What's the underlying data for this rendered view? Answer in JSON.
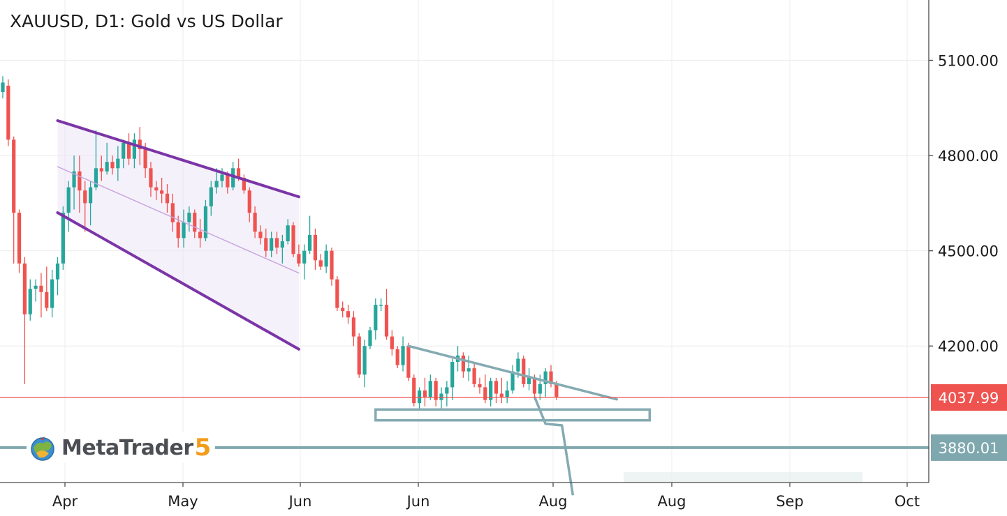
{
  "header": {
    "title": "XAUUSD, D1: Gold vs US Dollar"
  },
  "logo": {
    "text": "MetaTrader",
    "version": "5"
  },
  "colors": {
    "up": "#26a69a",
    "down": "#ef5350",
    "price_line": "#ef5350",
    "level_line": "#7fa7ae",
    "channel": "#7b35a6",
    "pattern": "#84aab2",
    "grid": "#ececec"
  },
  "chart_data": {
    "type": "candlestick",
    "symbol": "XAUUSD",
    "timeframe": "D1",
    "title": "XAUUSD, D1: Gold vs US Dollar",
    "ylim": [
      3770,
      5290
    ],
    "y_ticks": [
      5100,
      4800,
      4500,
      4200
    ],
    "y_tick_labels": [
      "5100.00",
      "4800.00",
      "4500.00",
      "4200.00"
    ],
    "x_tick_labels": [
      "Apr",
      "May",
      "Jun",
      "Jun",
      "Aug",
      "Aug",
      "Sep",
      "Oct"
    ],
    "current_price": {
      "value": 4037.99,
      "label": "4037.99"
    },
    "level": {
      "value": 3880.01,
      "label": "3880.01"
    },
    "grid": true,
    "candles": [
      [
        5000,
        5050,
        4980,
        5030
      ],
      [
        5020,
        5040,
        4830,
        4850
      ],
      [
        4850,
        4860,
        4460,
        4620
      ],
      [
        4620,
        4630,
        4430,
        4460
      ],
      [
        4460,
        4480,
        4080,
        4300
      ],
      [
        4300,
        4410,
        4280,
        4380
      ],
      [
        4380,
        4410,
        4340,
        4390
      ],
      [
        4390,
        4430,
        4290,
        4370
      ],
      [
        4370,
        4450,
        4310,
        4320
      ],
      [
        4320,
        4440,
        4290,
        4410
      ],
      [
        4410,
        4480,
        4360,
        4460
      ],
      [
        4460,
        4640,
        4440,
        4620
      ],
      [
        4620,
        4720,
        4560,
        4700
      ],
      [
        4700,
        4800,
        4630,
        4750
      ],
      [
        4750,
        4800,
        4620,
        4690
      ],
      [
        4690,
        4720,
        4560,
        4650
      ],
      [
        4650,
        4720,
        4580,
        4700
      ],
      [
        4700,
        4880,
        4690,
        4760
      ],
      [
        4760,
        4800,
        4720,
        4750
      ],
      [
        4750,
        4840,
        4740,
        4780
      ],
      [
        4780,
        4800,
        4740,
        4760
      ],
      [
        4760,
        4830,
        4720,
        4790
      ],
      [
        4790,
        4850,
        4760,
        4840
      ],
      [
        4840,
        4870,
        4770,
        4790
      ],
      [
        4790,
        4870,
        4760,
        4850
      ],
      [
        4850,
        4890,
        4770,
        4820
      ],
      [
        4820,
        4840,
        4730,
        4760
      ],
      [
        4760,
        4780,
        4670,
        4700
      ],
      [
        4700,
        4720,
        4660,
        4690
      ],
      [
        4690,
        4730,
        4650,
        4680
      ],
      [
        4680,
        4710,
        4620,
        4650
      ],
      [
        4650,
        4680,
        4560,
        4590
      ],
      [
        4590,
        4610,
        4510,
        4540
      ],
      [
        4540,
        4630,
        4510,
        4590
      ],
      [
        4590,
        4640,
        4560,
        4620
      ],
      [
        4620,
        4630,
        4540,
        4560
      ],
      [
        4560,
        4600,
        4510,
        4540
      ],
      [
        4540,
        4660,
        4530,
        4640
      ],
      [
        4640,
        4720,
        4610,
        4700
      ],
      [
        4700,
        4760,
        4680,
        4720
      ],
      [
        4720,
        4760,
        4700,
        4740
      ],
      [
        4740,
        4750,
        4680,
        4700
      ],
      [
        4700,
        4780,
        4690,
        4760
      ],
      [
        4760,
        4790,
        4720,
        4730
      ],
      [
        4730,
        4740,
        4680,
        4690
      ],
      [
        4690,
        4700,
        4590,
        4620
      ],
      [
        4620,
        4640,
        4540,
        4560
      ],
      [
        4560,
        4580,
        4520,
        4540
      ],
      [
        4540,
        4570,
        4480,
        4500
      ],
      [
        4500,
        4560,
        4480,
        4540
      ],
      [
        4540,
        4560,
        4490,
        4510
      ],
      [
        4510,
        4550,
        4460,
        4530
      ],
      [
        4530,
        4600,
        4520,
        4580
      ],
      [
        4580,
        4590,
        4480,
        4490
      ],
      [
        4490,
        4520,
        4450,
        4460
      ],
      [
        4460,
        4520,
        4410,
        4500
      ],
      [
        4500,
        4610,
        4490,
        4550
      ],
      [
        4550,
        4570,
        4440,
        4470
      ],
      [
        4470,
        4490,
        4440,
        4450
      ],
      [
        4450,
        4520,
        4430,
        4500
      ],
      [
        4500,
        4510,
        4390,
        4410
      ],
      [
        4410,
        4420,
        4310,
        4320
      ],
      [
        4320,
        4340,
        4290,
        4310
      ],
      [
        4310,
        4330,
        4270,
        4290
      ],
      [
        4290,
        4310,
        4200,
        4230
      ],
      [
        4230,
        4240,
        4100,
        4110
      ],
      [
        4110,
        4220,
        4070,
        4200
      ],
      [
        4200,
        4260,
        4190,
        4250
      ],
      [
        4250,
        4350,
        4220,
        4330
      ],
      [
        4330,
        4350,
        4310,
        4330
      ],
      [
        4330,
        4380,
        4220,
        4230
      ],
      [
        4230,
        4250,
        4170,
        4190
      ],
      [
        4190,
        4200,
        4130,
        4140
      ],
      [
        4140,
        4230,
        4120,
        4200
      ],
      [
        4200,
        4210,
        4090,
        4100
      ],
      [
        4100,
        4110,
        4010,
        4020
      ],
      [
        4020,
        4070,
        4000,
        4060
      ],
      [
        4060,
        4100,
        4010,
        4040
      ],
      [
        4040,
        4110,
        4030,
        4090
      ],
      [
        4090,
        4100,
        4010,
        4030
      ],
      [
        4030,
        4070,
        4000,
        4050
      ],
      [
        4050,
        4090,
        4010,
        4070
      ],
      [
        4070,
        4160,
        4030,
        4150
      ],
      [
        4150,
        4200,
        4120,
        4170
      ],
      [
        4170,
        4180,
        4100,
        4120
      ],
      [
        4120,
        4170,
        4090,
        4130
      ],
      [
        4130,
        4150,
        4070,
        4080
      ],
      [
        4080,
        4100,
        4050,
        4070
      ],
      [
        4070,
        4110,
        4020,
        4030
      ],
      [
        4030,
        4100,
        4010,
        4090
      ],
      [
        4090,
        4100,
        4020,
        4050
      ],
      [
        4050,
        4100,
        4020,
        4040
      ],
      [
        4040,
        4090,
        4020,
        4060
      ],
      [
        4060,
        4140,
        4050,
        4120
      ],
      [
        4120,
        4180,
        4100,
        4160
      ],
      [
        4160,
        4170,
        4070,
        4080
      ],
      [
        4080,
        4130,
        4060,
        4100
      ],
      [
        4100,
        4110,
        4030,
        4050
      ],
      [
        4050,
        4110,
        4030,
        4080
      ],
      [
        4080,
        4130,
        4040,
        4120
      ],
      [
        4120,
        4140,
        4070,
        4080
      ],
      [
        4080,
        4090,
        4030,
        4040
      ]
    ],
    "channel": {
      "upper": [
        [
          10,
          4910
        ],
        [
          54,
          4670
        ]
      ],
      "lower": [
        [
          10,
          4620
        ],
        [
          54,
          4190
        ]
      ],
      "mid": [
        [
          10,
          4765
        ],
        [
          54,
          4430
        ]
      ]
    },
    "triangle": {
      "upper": [
        [
          74,
          4200
        ],
        [
          112,
          4032
        ]
      ],
      "lower_box": [
        [
          68,
          4000
        ],
        [
          118,
          4000
        ],
        [
          118,
          3966
        ],
        [
          68,
          3966
        ]
      ]
    },
    "projection": [
      [
        97,
        4040
      ],
      [
        99,
        3955
      ],
      [
        102,
        3950
      ],
      [
        104,
        3730
      ]
    ]
  }
}
